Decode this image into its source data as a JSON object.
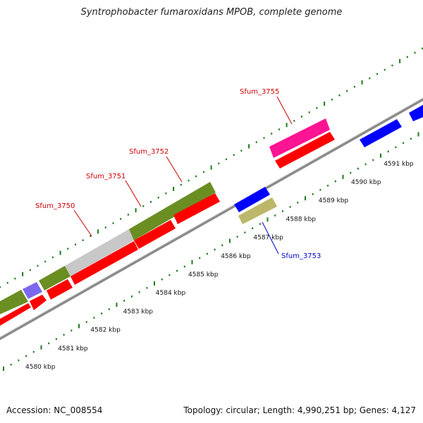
{
  "header": {
    "title": "Syntrophobacter fumaroxidans MPOB, complete genome"
  },
  "footer": {
    "accession": "Accession: NC_008554",
    "summary": "Topology: circular; Length: 4,990,251 bp; Genes: 4,127"
  },
  "ticks": [
    {
      "label": "4580 kbp"
    },
    {
      "label": "4581 kbp"
    },
    {
      "label": "4582 kbp"
    },
    {
      "label": "4583 kbp"
    },
    {
      "label": "4584 kbp"
    },
    {
      "label": "4585 kbp"
    },
    {
      "label": "4586 kbp"
    },
    {
      "label": "4587 kbp"
    },
    {
      "label": "4588 kbp"
    },
    {
      "label": "4589 kbp"
    },
    {
      "label": "4590 kbp"
    },
    {
      "label": "4591 kbp"
    }
  ],
  "gene_labels": [
    {
      "text": "Sfum_3750",
      "color": "#cc0000"
    },
    {
      "text": "Sfum_3751",
      "color": "#cc0000"
    },
    {
      "text": "Sfum_3752",
      "color": "#cc0000"
    },
    {
      "text": "Sfum_3755",
      "color": "#cc0000"
    },
    {
      "text": "Sfum_3753",
      "color": "#0000cc"
    }
  ],
  "colors": {
    "backbone": "#8a8a8a",
    "tick_dot": "#1f7a1f",
    "cds": "#ff0000",
    "olive": "#6b8e23",
    "gray": "#c8c8c8",
    "purple": "#7b68ee",
    "blue": "#0000ff",
    "pink": "#ff1493",
    "khaki": "#bdb76b"
  }
}
